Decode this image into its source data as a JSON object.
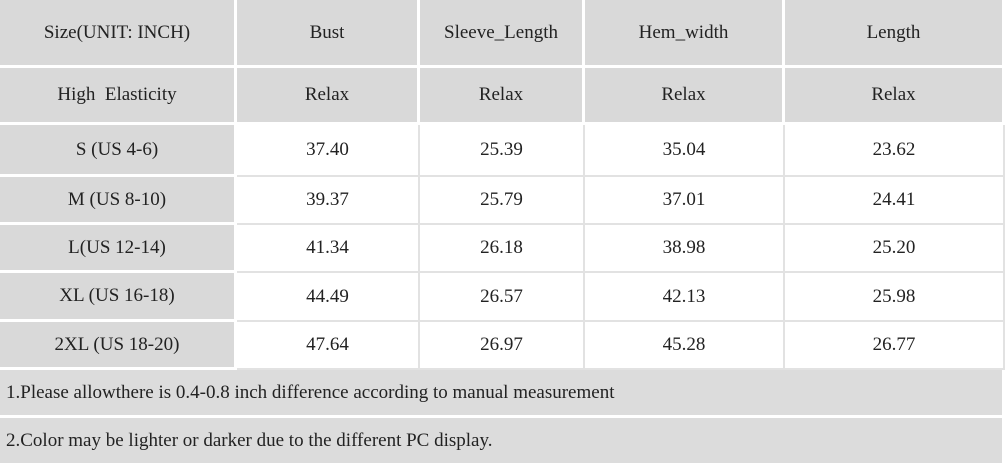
{
  "table": {
    "header": [
      "Size(UNIT: INCH)",
      "Bust",
      "Sleeve_Length",
      "Hem_width",
      "Length"
    ],
    "subheader": [
      "High  Elasticity",
      "Relax",
      "Relax",
      "Relax",
      "Relax"
    ],
    "rows": [
      [
        "S (US 4-6)",
        "37.40",
        "25.39",
        "35.04",
        "23.62"
      ],
      [
        "M (US 8-10)",
        "39.37",
        "25.79",
        "37.01",
        "24.41"
      ],
      [
        "L(US 12-14)",
        "41.34",
        "26.18",
        "38.98",
        "25.20"
      ],
      [
        "XL (US 16-18)",
        "44.49",
        "26.57",
        "42.13",
        "25.98"
      ],
      [
        "2XL (US 18-20)",
        "47.64",
        "26.97",
        "45.28",
        "26.77"
      ]
    ]
  },
  "notes": [
    "1.Please allowthere is 0.4-0.8 inch difference according to manual measurement",
    "2.Color may be lighter or darker due to the different PC display."
  ]
}
